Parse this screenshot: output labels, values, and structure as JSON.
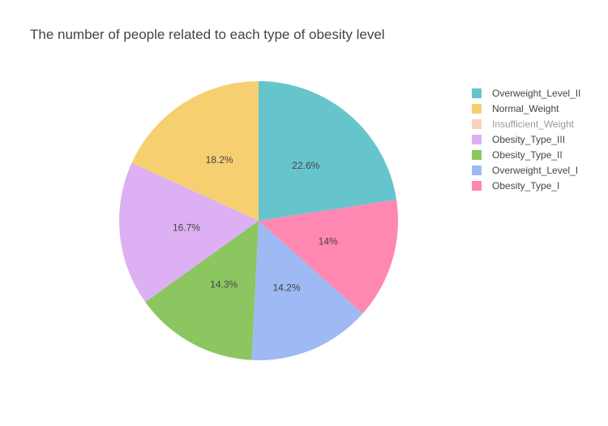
{
  "chart_data": {
    "type": "pie",
    "title": "The number of people related to each type of obesity level",
    "legend_placement": "right",
    "slices": [
      {
        "label": "Overweight_Level_II",
        "value": 22.6,
        "text": "22.6%",
        "color": "#66C5CC",
        "visible": true
      },
      {
        "label": "Obesity_Type_I",
        "value": 14.0,
        "text": "14%",
        "color": "#FE88B1",
        "visible": true
      },
      {
        "label": "Overweight_Level_I",
        "value": 14.2,
        "text": "14.2%",
        "color": "#9EB9F3",
        "visible": true
      },
      {
        "label": "Obesity_Type_II",
        "value": 14.3,
        "text": "14.3%",
        "color": "#8BC660",
        "visible": true
      },
      {
        "label": "Obesity_Type_III",
        "value": 16.7,
        "text": "16.7%",
        "color": "#DCB0F2",
        "visible": true
      },
      {
        "label": "Normal_Weight",
        "value": 18.2,
        "text": "18.2%",
        "color": "#F6CF71",
        "visible": true
      }
    ],
    "legend": [
      {
        "label": "Overweight_Level_II",
        "color": "#66C5CC",
        "visible": true
      },
      {
        "label": "Normal_Weight",
        "color": "#F6CF71",
        "visible": true
      },
      {
        "label": "Insufficient_Weight",
        "color": "#F9C6B3",
        "visible": false
      },
      {
        "label": "Obesity_Type_III",
        "color": "#DCB0F2",
        "visible": true
      },
      {
        "label": "Obesity_Type_II",
        "color": "#8BC660",
        "visible": true
      },
      {
        "label": "Overweight_Level_I",
        "color": "#9EB9F3",
        "visible": true
      },
      {
        "label": "Obesity_Type_I",
        "color": "#FE88B1",
        "visible": true
      }
    ]
  }
}
